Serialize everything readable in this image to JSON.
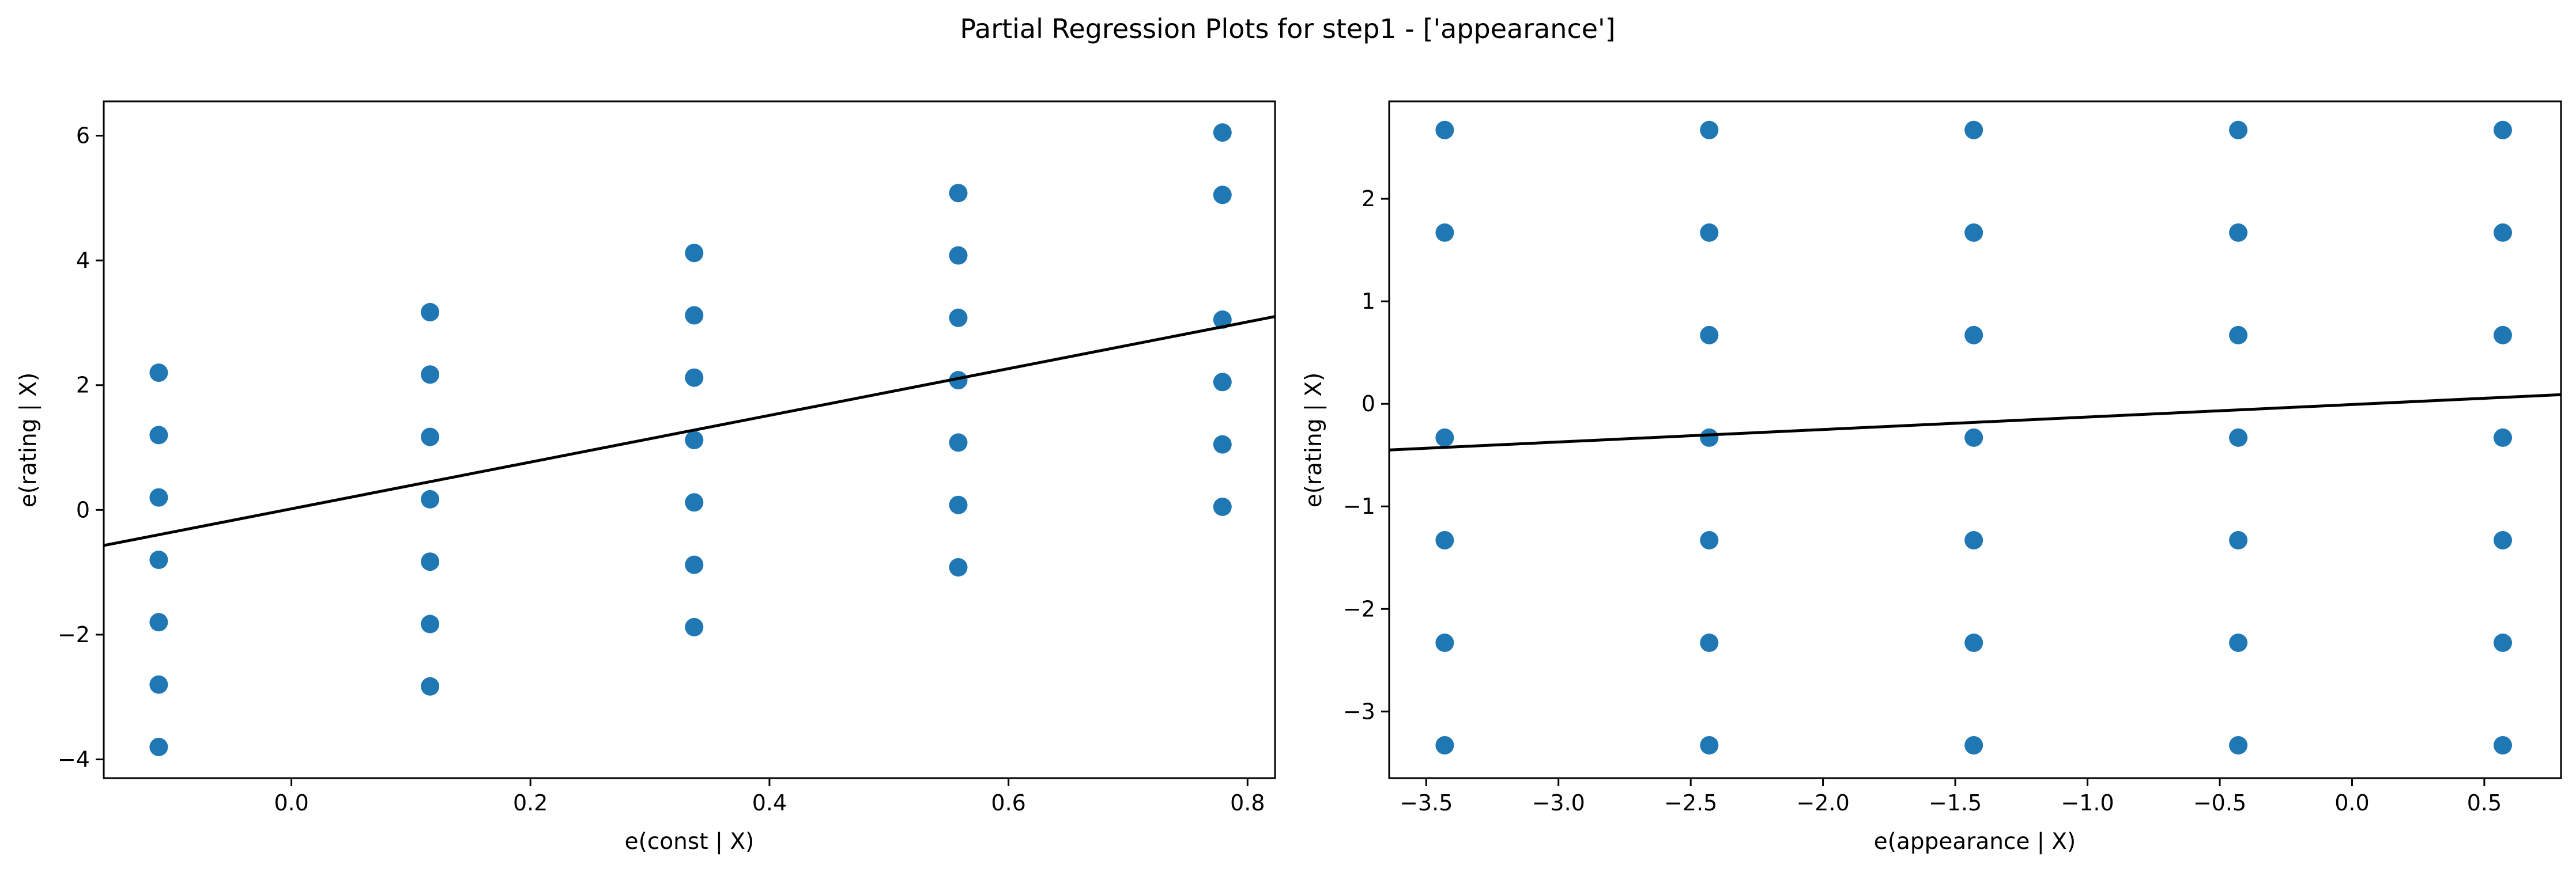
{
  "figure": {
    "title": "Partial Regression Plots for step1 - ['appearance']",
    "marker_color": "#1f77b4",
    "line_color": "#000000"
  },
  "chart_data": [
    {
      "type": "scatter",
      "name": "const",
      "title": "",
      "xlabel": "e(const | X)",
      "ylabel": "e(rating | X)",
      "xlim": [
        -0.157,
        0.823
      ],
      "ylim": [
        -4.3,
        6.55
      ],
      "xticks": [
        0.0,
        0.2,
        0.4,
        0.6,
        0.8
      ],
      "xtick_labels": [
        "0.0",
        "0.2",
        "0.4",
        "0.6",
        "0.8"
      ],
      "yticks": [
        -4,
        -2,
        0,
        2,
        4,
        6
      ],
      "ytick_labels": [
        "−4",
        "−2",
        "0",
        "2",
        "4",
        "6"
      ],
      "grid": false,
      "points": [
        {
          "x": -0.111,
          "y": 2.2
        },
        {
          "x": -0.111,
          "y": 1.2
        },
        {
          "x": -0.111,
          "y": 0.2
        },
        {
          "x": -0.111,
          "y": -0.8
        },
        {
          "x": -0.111,
          "y": -1.8
        },
        {
          "x": -0.111,
          "y": -2.8
        },
        {
          "x": -0.111,
          "y": -3.8
        },
        {
          "x": 0.116,
          "y": 3.17
        },
        {
          "x": 0.116,
          "y": 2.17
        },
        {
          "x": 0.116,
          "y": 1.17
        },
        {
          "x": 0.116,
          "y": 0.17
        },
        {
          "x": 0.116,
          "y": -0.83
        },
        {
          "x": 0.116,
          "y": -1.83
        },
        {
          "x": 0.116,
          "y": -2.83
        },
        {
          "x": 0.337,
          "y": 4.12
        },
        {
          "x": 0.337,
          "y": 3.12
        },
        {
          "x": 0.337,
          "y": 2.12
        },
        {
          "x": 0.337,
          "y": 1.12
        },
        {
          "x": 0.337,
          "y": 0.12
        },
        {
          "x": 0.337,
          "y": -0.88
        },
        {
          "x": 0.337,
          "y": -1.88
        },
        {
          "x": 0.558,
          "y": 5.08
        },
        {
          "x": 0.558,
          "y": 4.08
        },
        {
          "x": 0.558,
          "y": 3.08
        },
        {
          "x": 0.558,
          "y": 2.08
        },
        {
          "x": 0.558,
          "y": 1.08
        },
        {
          "x": 0.558,
          "y": 0.08
        },
        {
          "x": 0.558,
          "y": -0.92
        },
        {
          "x": 0.779,
          "y": 6.05
        },
        {
          "x": 0.779,
          "y": 5.05
        },
        {
          "x": 0.779,
          "y": 3.05
        },
        {
          "x": 0.779,
          "y": 2.05
        },
        {
          "x": 0.779,
          "y": 1.05
        },
        {
          "x": 0.779,
          "y": 0.05
        }
      ],
      "fit_line": {
        "x": [
          -0.157,
          0.823
        ],
        "y": [
          -0.57,
          3.1
        ]
      }
    },
    {
      "type": "scatter",
      "name": "appearance",
      "title": "",
      "xlabel": "e(appearance | X)",
      "ylabel": "e(rating | X)",
      "xlim": [
        -3.64,
        0.79
      ],
      "ylim": [
        -3.65,
        2.95
      ],
      "xticks": [
        -3.5,
        -3.0,
        -2.5,
        -2.0,
        -1.5,
        -1.0,
        -0.5,
        0.0,
        0.5
      ],
      "xtick_labels": [
        "−3.5",
        "−3.0",
        "−2.5",
        "−2.0",
        "−1.5",
        "−1.0",
        "−0.5",
        "0.0",
        "0.5"
      ],
      "yticks": [
        -3,
        -2,
        -1,
        0,
        1,
        2
      ],
      "ytick_labels": [
        "−3",
        "−2",
        "−1",
        "0",
        "1",
        "2"
      ],
      "grid": false,
      "points": [
        {
          "x": -3.43,
          "y": 2.67
        },
        {
          "x": -3.43,
          "y": 1.67
        },
        {
          "x": -3.43,
          "y": -0.33
        },
        {
          "x": -3.43,
          "y": -1.33
        },
        {
          "x": -3.43,
          "y": -2.33
        },
        {
          "x": -3.43,
          "y": -3.33
        },
        {
          "x": -2.43,
          "y": 2.67
        },
        {
          "x": -2.43,
          "y": 1.67
        },
        {
          "x": -2.43,
          "y": 0.67
        },
        {
          "x": -2.43,
          "y": -0.33
        },
        {
          "x": -2.43,
          "y": -1.33
        },
        {
          "x": -2.43,
          "y": -2.33
        },
        {
          "x": -2.43,
          "y": -3.33
        },
        {
          "x": -1.43,
          "y": 2.67
        },
        {
          "x": -1.43,
          "y": 1.67
        },
        {
          "x": -1.43,
          "y": 0.67
        },
        {
          "x": -1.43,
          "y": -0.33
        },
        {
          "x": -1.43,
          "y": -1.33
        },
        {
          "x": -1.43,
          "y": -2.33
        },
        {
          "x": -1.43,
          "y": -3.33
        },
        {
          "x": -0.43,
          "y": 2.67
        },
        {
          "x": -0.43,
          "y": 1.67
        },
        {
          "x": -0.43,
          "y": 0.67
        },
        {
          "x": -0.43,
          "y": -0.33
        },
        {
          "x": -0.43,
          "y": -1.33
        },
        {
          "x": -0.43,
          "y": -2.33
        },
        {
          "x": -0.43,
          "y": -3.33
        },
        {
          "x": 0.57,
          "y": 2.67
        },
        {
          "x": 0.57,
          "y": 1.67
        },
        {
          "x": 0.57,
          "y": 0.67
        },
        {
          "x": 0.57,
          "y": -0.33
        },
        {
          "x": 0.57,
          "y": -1.33
        },
        {
          "x": 0.57,
          "y": -2.33
        },
        {
          "x": 0.57,
          "y": -3.33
        }
      ],
      "fit_line": {
        "x": [
          -3.64,
          0.79
        ],
        "y": [
          -0.45,
          0.09
        ]
      }
    }
  ]
}
